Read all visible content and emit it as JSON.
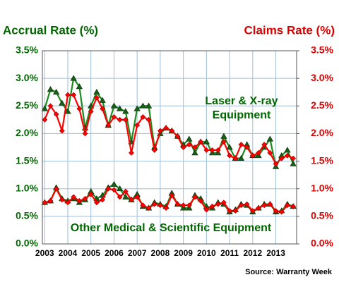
{
  "chart_data": {
    "type": "line",
    "y_title": "Accrual Rate (%)",
    "y2_title": "Claims Rate (%)",
    "annotations": [
      [
        "Laser & X-ray",
        "Equipment"
      ],
      [
        "Other Medical & Scientific Equipment"
      ]
    ],
    "source": "Source: Warranty Week",
    "y_color": "#006600",
    "y2_color": "#dd0000",
    "grid": true,
    "x": [
      2003,
      2003.25,
      2003.5,
      2003.75,
      2004,
      2004.25,
      2004.5,
      2004.75,
      2005,
      2005.25,
      2005.5,
      2005.75,
      2006,
      2006.25,
      2006.5,
      2006.75,
      2007,
      2007.25,
      2007.5,
      2007.75,
      2008,
      2008.25,
      2008.5,
      2008.75,
      2009,
      2009.25,
      2009.5,
      2009.75,
      2010,
      2010.25,
      2010.5,
      2010.75,
      2011,
      2011.25,
      2011.5,
      2011.75,
      2012,
      2012.25,
      2012.5,
      2012.75,
      2013,
      2013.25,
      2013.5,
      2013.75
    ],
    "xlim": [
      2002.9,
      2013.9
    ],
    "xticks": [
      2003,
      2004,
      2005,
      2006,
      2007,
      2008,
      2009,
      2010,
      2011,
      2012,
      2013
    ],
    "ylim": [
      0,
      3.5
    ],
    "yticks": [
      {
        "value": 0,
        "label": "0.0%"
      },
      {
        "value": 0.5,
        "label": "0.5%"
      },
      {
        "value": 1,
        "label": "1.0%"
      },
      {
        "value": 1.5,
        "label": "1.5%"
      },
      {
        "value": 2,
        "label": "2.0%"
      },
      {
        "value": 2.5,
        "label": "2.5%"
      },
      {
        "value": 3,
        "label": "3.0%"
      },
      {
        "value": 3.5,
        "label": "3.5%"
      }
    ],
    "y2lim": [
      0,
      3.5
    ],
    "y2ticks": [
      {
        "value": 0,
        "label": "0.0%"
      },
      {
        "value": 0.5,
        "label": "0.5%"
      },
      {
        "value": 1,
        "label": "1.0%"
      },
      {
        "value": 1.5,
        "label": "1.5%"
      },
      {
        "value": 2,
        "label": "2.0%"
      },
      {
        "value": 2.5,
        "label": "2.5%"
      },
      {
        "value": 3,
        "label": "3.0%"
      },
      {
        "value": 3.5,
        "label": "3.5%"
      }
    ],
    "series": [
      {
        "color": "#1f8a1f",
        "marker": "triangle",
        "values": [
          2.45,
          2.8,
          2.75,
          2.55,
          2.4,
          3.0,
          2.85,
          2.1,
          2.5,
          2.75,
          2.6,
          2.15,
          2.5,
          2.45,
          2.4,
          1.85,
          2.45,
          2.5,
          2.5,
          1.75,
          2.0,
          2.1,
          2.05,
          1.95,
          1.8,
          1.9,
          1.65,
          1.85,
          1.85,
          1.65,
          1.65,
          1.95,
          1.75,
          1.55,
          1.55,
          1.8,
          1.6,
          1.6,
          1.75,
          1.9,
          1.4,
          1.6,
          1.7,
          1.45
        ]
      },
      {
        "color": "#ff0000",
        "marker": "diamond",
        "axis": "y2",
        "values": [
          2.25,
          2.5,
          2.35,
          2.05,
          2.7,
          2.7,
          2.45,
          2.0,
          2.4,
          2.65,
          2.45,
          2.15,
          2.3,
          2.25,
          2.25,
          1.65,
          2.15,
          2.3,
          2.25,
          1.7,
          2.05,
          2.1,
          2.05,
          1.95,
          1.75,
          1.8,
          1.75,
          1.85,
          1.7,
          1.7,
          1.7,
          1.85,
          1.6,
          1.55,
          1.8,
          1.75,
          1.6,
          1.65,
          1.8,
          1.65,
          1.45,
          1.55,
          1.6,
          1.55
        ]
      },
      {
        "color": "#1f8a1f",
        "marker": "triangle",
        "values": [
          0.75,
          0.78,
          1.02,
          0.82,
          0.78,
          0.82,
          0.75,
          0.8,
          0.95,
          0.82,
          0.88,
          1.02,
          1.08,
          1.0,
          0.85,
          0.8,
          0.9,
          0.68,
          0.65,
          0.75,
          0.72,
          0.68,
          0.92,
          0.72,
          0.65,
          0.65,
          0.88,
          0.82,
          0.68,
          0.65,
          0.75,
          0.72,
          0.58,
          0.62,
          0.72,
          0.7,
          0.58,
          0.65,
          0.72,
          0.72,
          0.58,
          0.6,
          0.72,
          0.68
        ]
      },
      {
        "color": "#ff0000",
        "marker": "diamond",
        "axis": "y2",
        "values": [
          0.75,
          0.78,
          1.0,
          0.8,
          0.75,
          0.85,
          0.78,
          0.82,
          0.9,
          0.75,
          0.8,
          1.0,
          0.98,
          0.85,
          0.95,
          0.8,
          0.85,
          0.7,
          0.65,
          0.72,
          0.7,
          0.65,
          0.88,
          0.72,
          0.7,
          0.7,
          0.85,
          0.78,
          0.62,
          0.68,
          0.72,
          0.75,
          0.6,
          0.6,
          0.7,
          0.72,
          0.6,
          0.65,
          0.7,
          0.72,
          0.6,
          0.58,
          0.7,
          0.68
        ]
      }
    ]
  }
}
